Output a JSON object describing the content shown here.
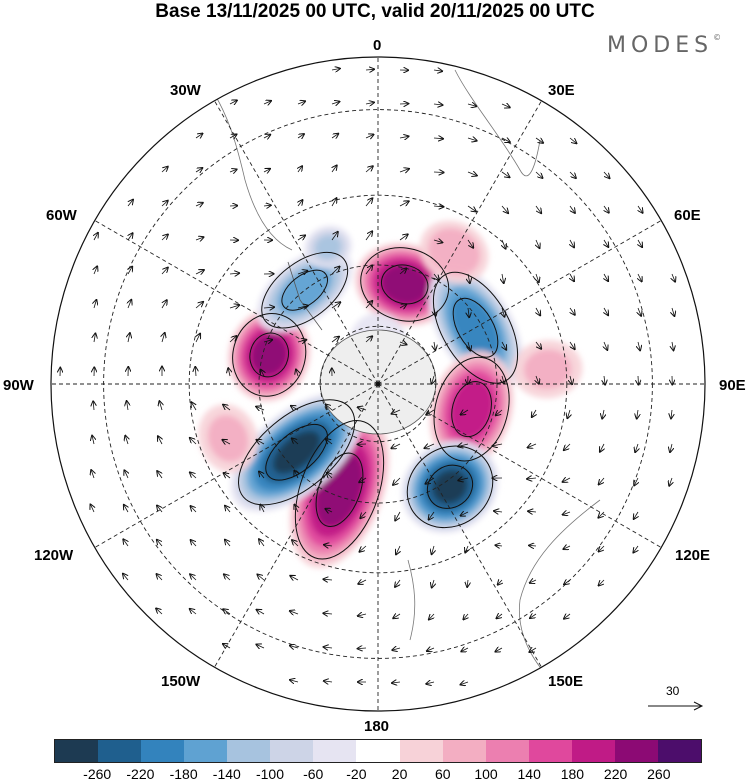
{
  "title": "Base 13/11/2025 00 UTC, valid 20/11/2025 00 UTC",
  "logo": "MODES",
  "logo_mark": "©",
  "longitude_labels": {
    "lon_0": "0",
    "lon_30e": "30E",
    "lon_60e": "60E",
    "lon_90e": "90E",
    "lon_120e": "120E",
    "lon_150e": "150E",
    "lon_180": "180",
    "lon_150w": "150W",
    "lon_120w": "120W",
    "lon_90w": "90W",
    "lon_60w": "60W",
    "lon_30w": "30W"
  },
  "reference_vector": "30",
  "colorbar": {
    "colors": [
      "#1d3a52",
      "#1f5f8e",
      "#3383bd",
      "#5fa2d2",
      "#a7c3df",
      "#cdd4e7",
      "#e6e4f2",
      "#ffffff",
      "#f7d2d8",
      "#f3aec2",
      "#ec7fb0",
      "#e0489d",
      "#c01b86",
      "#8c0a74",
      "#4c0d6b"
    ],
    "ticks": [
      "-260",
      "-220",
      "-180",
      "-140",
      "-100",
      "-60",
      "-20",
      "20",
      "60",
      "100",
      "140",
      "180",
      "220",
      "260"
    ]
  },
  "map_data": {
    "projection": "south-polar-stereographic",
    "graticule_longitudes_deg": [
      0,
      30,
      60,
      90,
      120,
      150,
      180,
      210,
      240,
      270,
      300,
      330
    ],
    "anomaly_centers": [
      {
        "lon": 15,
        "lat": -55,
        "value": 240,
        "rx": 0.16,
        "ry": 0.13
      },
      {
        "lon": 60,
        "lat": -52,
        "value": -200,
        "rx": 0.22,
        "ry": 0.12
      },
      {
        "lon": 105,
        "lat": -57,
        "value": 200,
        "rx": 0.19,
        "ry": 0.13
      },
      {
        "lon": 145,
        "lat": -48,
        "value": -260,
        "rx": 0.16,
        "ry": 0.14
      },
      {
        "lon": 200,
        "lat": -52,
        "value": 240,
        "rx": 0.14,
        "ry": 0.26
      },
      {
        "lon": 230,
        "lat": -54,
        "value": -260,
        "rx": 0.13,
        "ry": 0.25
      },
      {
        "lon": 285,
        "lat": -52,
        "value": 230,
        "rx": 0.15,
        "ry": 0.13
      },
      {
        "lon": 322,
        "lat": -50,
        "value": -160,
        "rx": 0.18,
        "ry": 0.1
      },
      {
        "lon": 340,
        "lat": -42,
        "value": -100,
        "rx": 0.08,
        "ry": 0.07
      },
      {
        "lon": 30,
        "lat": -40,
        "value": 80,
        "rx": 0.12,
        "ry": 0.1
      },
      {
        "lon": 85,
        "lat": -35,
        "value": 60,
        "rx": 0.1,
        "ry": 0.12
      },
      {
        "lon": 250,
        "lat": -38,
        "value": 60,
        "rx": 0.12,
        "ry": 0.1
      },
      {
        "lon": 0,
        "lat": -75,
        "value": -40,
        "rx": 0.1,
        "ry": 0.1
      }
    ]
  }
}
